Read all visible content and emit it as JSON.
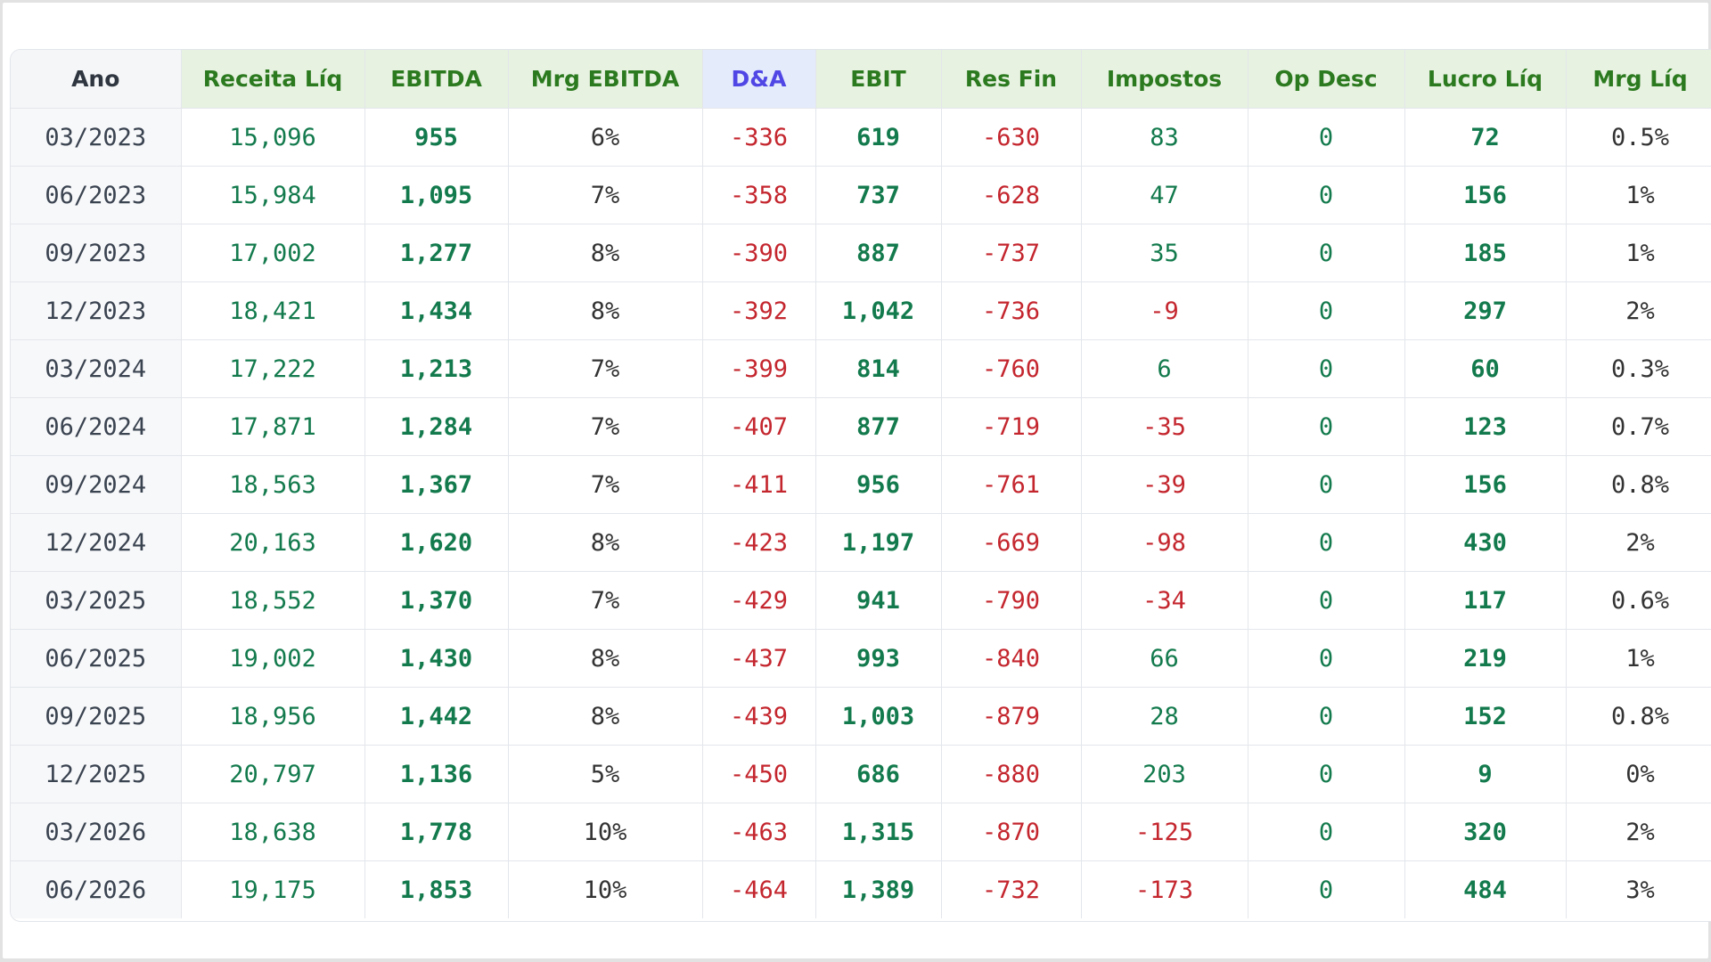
{
  "table": {
    "headers": [
      "Ano",
      "Receita Líq",
      "EBITDA",
      "Mrg EBITDA",
      "D&A",
      "EBIT",
      "Res Fin",
      "Impostos",
      "Op Desc",
      "Lucro Líq",
      "Mrg Líq"
    ],
    "rows": [
      [
        "03/2023",
        "15,096",
        "955",
        "6%",
        "-336",
        "619",
        "-630",
        "83",
        "0",
        "72",
        "0.5%"
      ],
      [
        "06/2023",
        "15,984",
        "1,095",
        "7%",
        "-358",
        "737",
        "-628",
        "47",
        "0",
        "156",
        "1%"
      ],
      [
        "09/2023",
        "17,002",
        "1,277",
        "8%",
        "-390",
        "887",
        "-737",
        "35",
        "0",
        "185",
        "1%"
      ],
      [
        "12/2023",
        "18,421",
        "1,434",
        "8%",
        "-392",
        "1,042",
        "-736",
        "-9",
        "0",
        "297",
        "2%"
      ],
      [
        "03/2024",
        "17,222",
        "1,213",
        "7%",
        "-399",
        "814",
        "-760",
        "6",
        "0",
        "60",
        "0.3%"
      ],
      [
        "06/2024",
        "17,871",
        "1,284",
        "7%",
        "-407",
        "877",
        "-719",
        "-35",
        "0",
        "123",
        "0.7%"
      ],
      [
        "09/2024",
        "18,563",
        "1,367",
        "7%",
        "-411",
        "956",
        "-761",
        "-39",
        "0",
        "156",
        "0.8%"
      ],
      [
        "12/2024",
        "20,163",
        "1,620",
        "8%",
        "-423",
        "1,197",
        "-669",
        "-98",
        "0",
        "430",
        "2%"
      ],
      [
        "03/2025",
        "18,552",
        "1,370",
        "7%",
        "-429",
        "941",
        "-790",
        "-34",
        "0",
        "117",
        "0.6%"
      ],
      [
        "06/2025",
        "19,002",
        "1,430",
        "8%",
        "-437",
        "993",
        "-840",
        "66",
        "0",
        "219",
        "1%"
      ],
      [
        "09/2025",
        "18,956",
        "1,442",
        "8%",
        "-439",
        "1,003",
        "-879",
        "28",
        "0",
        "152",
        "0.8%"
      ],
      [
        "12/2025",
        "20,797",
        "1,136",
        "5%",
        "-450",
        "686",
        "-880",
        "203",
        "0",
        "9",
        "0%"
      ],
      [
        "03/2026",
        "18,638",
        "1,778",
        "10%",
        "-463",
        "1,315",
        "-870",
        "-125",
        "0",
        "320",
        "2%"
      ],
      [
        "06/2026",
        "19,175",
        "1,853",
        "10%",
        "-464",
        "1,389",
        "-732",
        "-173",
        "0",
        "484",
        "3%"
      ]
    ]
  },
  "colors": {
    "header_green_text": "#2c7a1f",
    "header_green_bg": "#e7f2e1",
    "header_da_text": "#4f46e5",
    "header_da_bg": "#e4ebfb",
    "positive": "#137a4d",
    "negative": "#c4262e",
    "neutral": "#333333"
  }
}
